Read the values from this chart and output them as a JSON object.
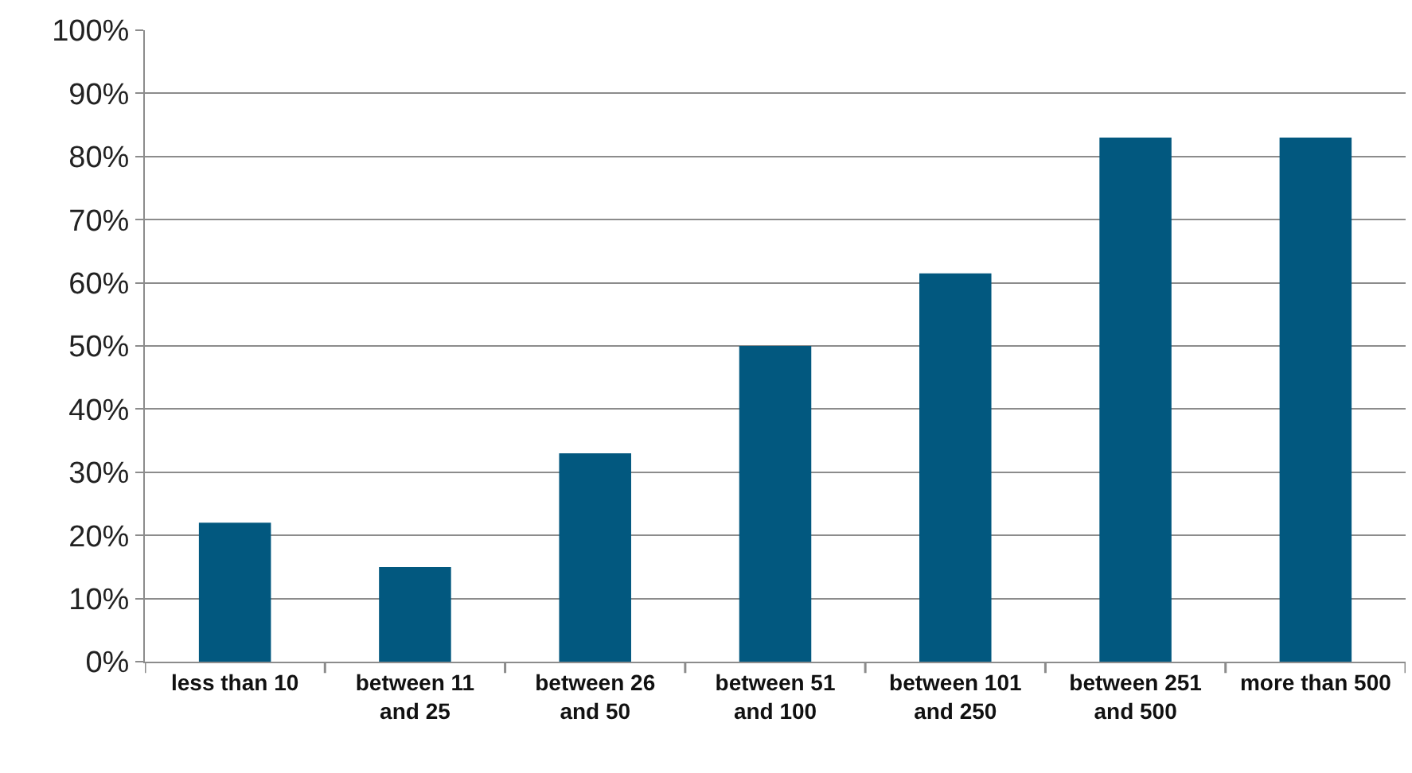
{
  "chart_data": {
    "type": "bar",
    "categories": [
      "less than 10",
      "between 11 and 25",
      "between 26 and 50",
      "between 51 and 100",
      "between 101 and 250",
      "between 251 and 500",
      "more than 500"
    ],
    "values": [
      22,
      15,
      33,
      50,
      61.5,
      83,
      83
    ],
    "color": "#02587f",
    "ylim": [
      0,
      100
    ],
    "yticks": [
      {
        "value": 0,
        "label": "0%"
      },
      {
        "value": 10,
        "label": "10%"
      },
      {
        "value": 20,
        "label": "20%"
      },
      {
        "value": 30,
        "label": "30%"
      },
      {
        "value": 40,
        "label": "40%"
      },
      {
        "value": 50,
        "label": "50%"
      },
      {
        "value": 60,
        "label": "60%"
      },
      {
        "value": 70,
        "label": "70%"
      },
      {
        "value": 80,
        "label": "80%"
      },
      {
        "value": 90,
        "label": "90%"
      },
      {
        "value": 100,
        "label": "100%"
      }
    ],
    "grid": "y"
  }
}
